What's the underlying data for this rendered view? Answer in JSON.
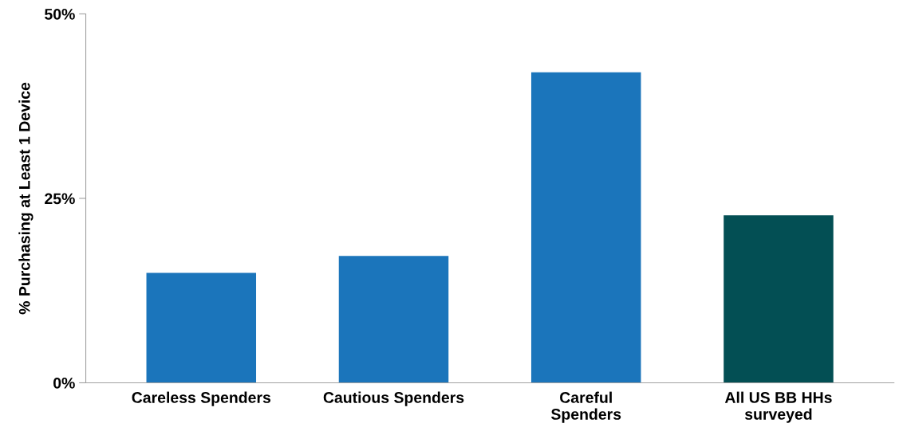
{
  "chart_data": {
    "type": "bar",
    "ylabel": "% Purchasing at Least 1 Device",
    "categories": [
      "Careless Spenders",
      "Cautious Spenders",
      "Careful\nSpenders",
      "All US BB HHs\nsurveyed"
    ],
    "values": [
      14.9,
      17.2,
      42.1,
      22.7
    ],
    "colors": [
      "#1b75bb",
      "#1b75bb",
      "#1b75bb",
      "#034f54"
    ],
    "ylim": [
      0,
      50
    ],
    "yticks": [
      {
        "value": 0,
        "label": "0%"
      },
      {
        "value": 25,
        "label": "25%"
      },
      {
        "value": 50,
        "label": "50%"
      }
    ],
    "grid": false,
    "legend": false
  }
}
